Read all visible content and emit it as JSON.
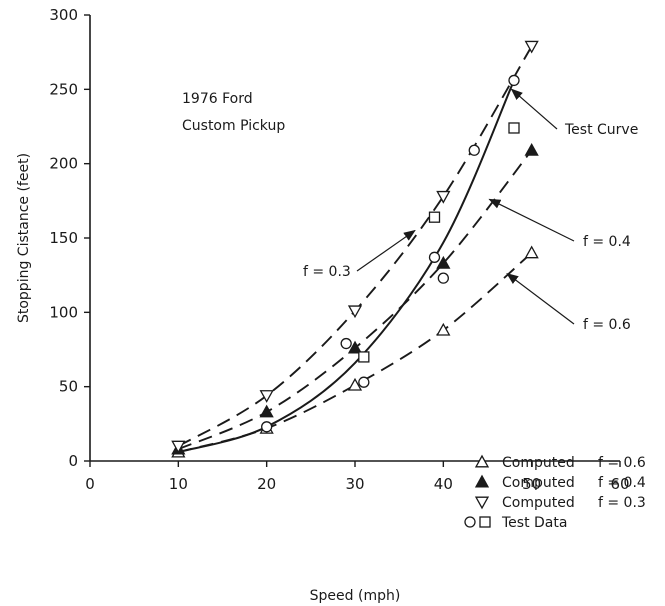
{
  "chart_data": {
    "type": "scatter",
    "title": "1976 Ford",
    "subtitle": "Custom Pickup",
    "xlabel": "Speed (mph)",
    "ylabel": "Stopping Cistance (feet)",
    "xlim": [
      0,
      60
    ],
    "ylim": [
      0,
      300
    ],
    "xticks": [
      0,
      10,
      20,
      30,
      40,
      50,
      60
    ],
    "yticks": [
      0,
      50,
      100,
      150,
      200,
      250,
      300
    ],
    "grid": false,
    "legend_position": "bottom-right",
    "series": [
      {
        "name": "Computed f = 0.6",
        "marker": "triangle-up-open",
        "x": [
          10,
          20,
          30,
          40,
          50
        ],
        "y": [
          6,
          22,
          51,
          88,
          140
        ]
      },
      {
        "name": "Computed f = 0.4",
        "marker": "triangle-up-filled",
        "x": [
          10,
          20,
          30,
          40,
          50
        ],
        "y": [
          8,
          33,
          76,
          133,
          209
        ]
      },
      {
        "name": "Computed f = 0.3",
        "marker": "triangle-down-open",
        "x": [
          10,
          20,
          30,
          40,
          50
        ],
        "y": [
          10,
          44,
          101,
          178,
          279
        ]
      },
      {
        "name": "Test Data",
        "marker": "circle-open",
        "x": [
          20,
          29,
          31,
          39,
          40,
          43.5,
          48
        ],
        "y": [
          23,
          79,
          53,
          137,
          123,
          209,
          256
        ]
      },
      {
        "name": "Test Data",
        "marker": "square-open",
        "x": [
          31,
          39,
          48
        ],
        "y": [
          70,
          164,
          224
        ]
      }
    ],
    "curves": [
      {
        "id": "f03",
        "style": "dashed",
        "x": [
          10,
          20,
          30,
          40,
          50
        ],
        "y": [
          10,
          44,
          101,
          178,
          279
        ]
      },
      {
        "id": "f04",
        "style": "dashed",
        "x": [
          10,
          20,
          30,
          40,
          50
        ],
        "y": [
          8,
          33,
          76,
          133,
          209
        ]
      },
      {
        "id": "f06",
        "style": "dashed",
        "x": [
          10,
          20,
          30,
          40,
          50
        ],
        "y": [
          6,
          22,
          51,
          88,
          140
        ]
      },
      {
        "id": "test",
        "style": "solid",
        "x": [
          10,
          20,
          30,
          40,
          48
        ],
        "y": [
          6,
          23,
          66,
          147,
          256
        ]
      }
    ],
    "annotations": [
      {
        "text": "Test Curve",
        "points_to": [
          47.5,
          250
        ]
      },
      {
        "text": "f = 0.4",
        "points_to": [
          45,
          176
        ]
      },
      {
        "text": "f = 0.3",
        "points_to": [
          37,
          155
        ]
      },
      {
        "text": "f = 0.6",
        "points_to": [
          47,
          126
        ]
      }
    ],
    "legend": [
      {
        "text": "Computed",
        "param": "f = 0.6"
      },
      {
        "text": "Computed",
        "param": "f = 0.4"
      },
      {
        "text": "Computed",
        "param": "f = 0.3"
      },
      {
        "text": "Test Data",
        "param": ""
      }
    ]
  }
}
